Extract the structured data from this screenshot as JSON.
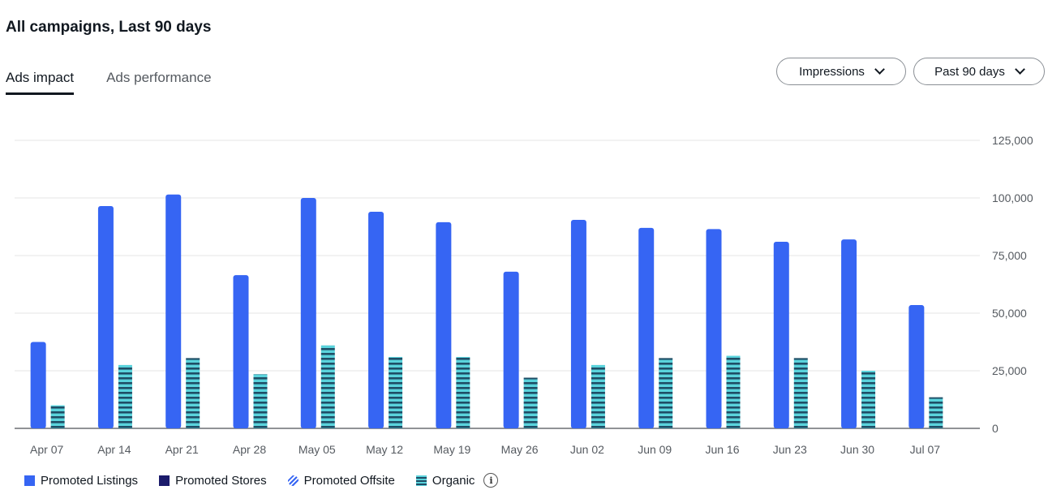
{
  "header": {
    "title": "All campaigns, Last 90 days"
  },
  "tabs": [
    {
      "label": "Ads impact",
      "active": true
    },
    {
      "label": "Ads performance",
      "active": false
    }
  ],
  "filters": {
    "metric": "Impressions",
    "range": "Past 90 days"
  },
  "legend": {
    "promoted_listings": "Promoted Listings",
    "promoted_stores": "Promoted Stores",
    "promoted_offsite": "Promoted Offsite",
    "organic": "Organic",
    "info_icon": "info-icon"
  },
  "colors": {
    "promoted_listings": "#3665f3",
    "promoted_stores": "#1b1b6b",
    "organic_light": "#5ad3dc",
    "organic_dark": "#1f4e66",
    "grid": "#e5e5e5"
  },
  "chart_data": {
    "type": "bar",
    "title": "",
    "xlabel": "",
    "ylabel": "",
    "ylim": [
      0,
      125000
    ],
    "yticks": [
      "0",
      "25,000",
      "50,000",
      "75,000",
      "100,000",
      "125,000"
    ],
    "ytick_values": [
      0,
      25000,
      50000,
      75000,
      100000,
      125000
    ],
    "grid": true,
    "legend_position": "bottom-left",
    "categories": [
      "Apr 07",
      "Apr 14",
      "Apr 21",
      "Apr 28",
      "May 05",
      "May 12",
      "May 19",
      "May 26",
      "Jun 02",
      "Jun 09",
      "Jun 16",
      "Jun 23",
      "Jun 30",
      "Jul 07"
    ],
    "series": [
      {
        "name": "Promoted Listings",
        "values": [
          37500,
          96500,
          101500,
          66500,
          100000,
          94000,
          89500,
          68000,
          90500,
          87000,
          86500,
          81000,
          82000,
          53500
        ]
      },
      {
        "name": "Organic",
        "values": [
          10000,
          27500,
          30500,
          23500,
          36000,
          31000,
          31000,
          22000,
          27500,
          30500,
          31500,
          30500,
          25000,
          13500
        ]
      }
    ]
  }
}
